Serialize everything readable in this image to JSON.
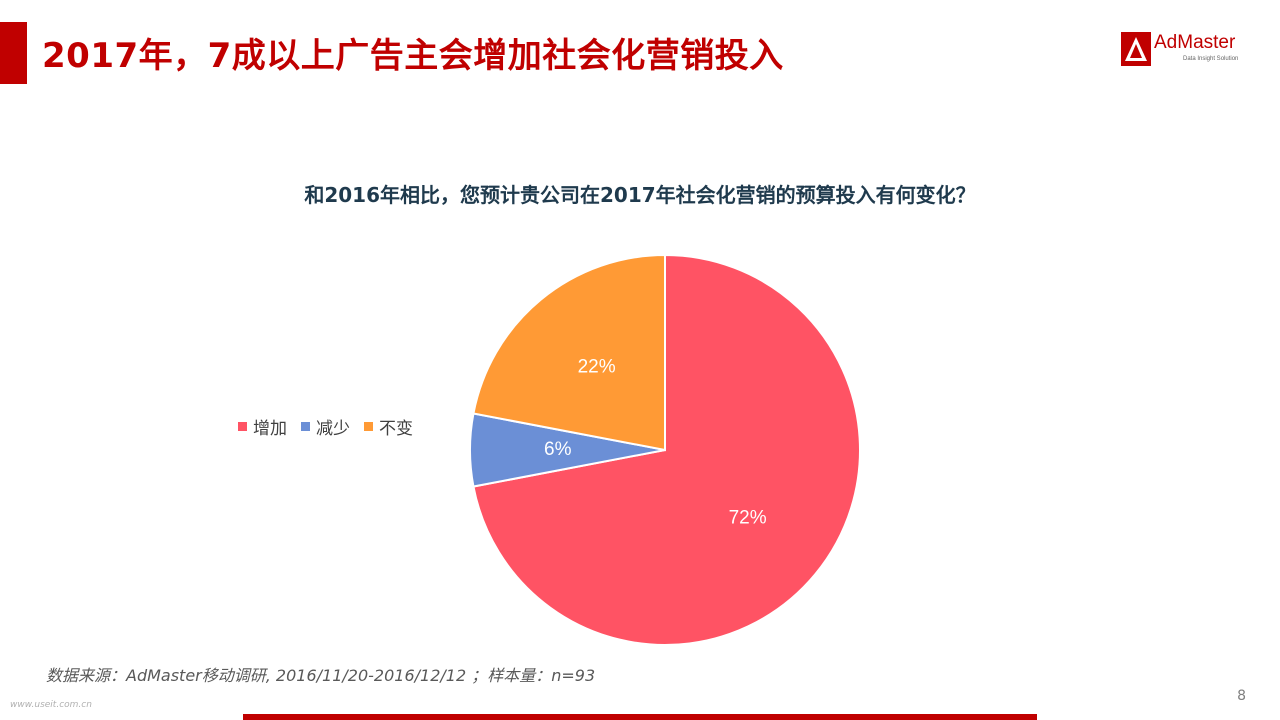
{
  "header": {
    "title": "2017年，7成以上广告主会增加社会化营销投入"
  },
  "logo": {
    "name": "AdMaster",
    "tagline": "Data Insight Solution"
  },
  "chart_data": {
    "type": "pie",
    "title": "和2016年相比，您预计贵公司在2017年社会化营销的预算投入有何变化？",
    "categories": [
      "增加",
      "减少",
      "不变"
    ],
    "values": [
      72,
      6,
      22
    ],
    "data_labels": [
      "72%",
      "6%",
      "22%"
    ],
    "colors": [
      "#ff5364",
      "#6b8fd6",
      "#ff9a35"
    ],
    "legend_position": "left"
  },
  "footer": {
    "source": "数据来源：AdMaster移动调研, 2016/11/20-2016/12/12 ；样本量：n=93",
    "page_number": "8",
    "watermark": "www.useit.com.cn"
  },
  "theme": {
    "accent": "#c00000"
  }
}
